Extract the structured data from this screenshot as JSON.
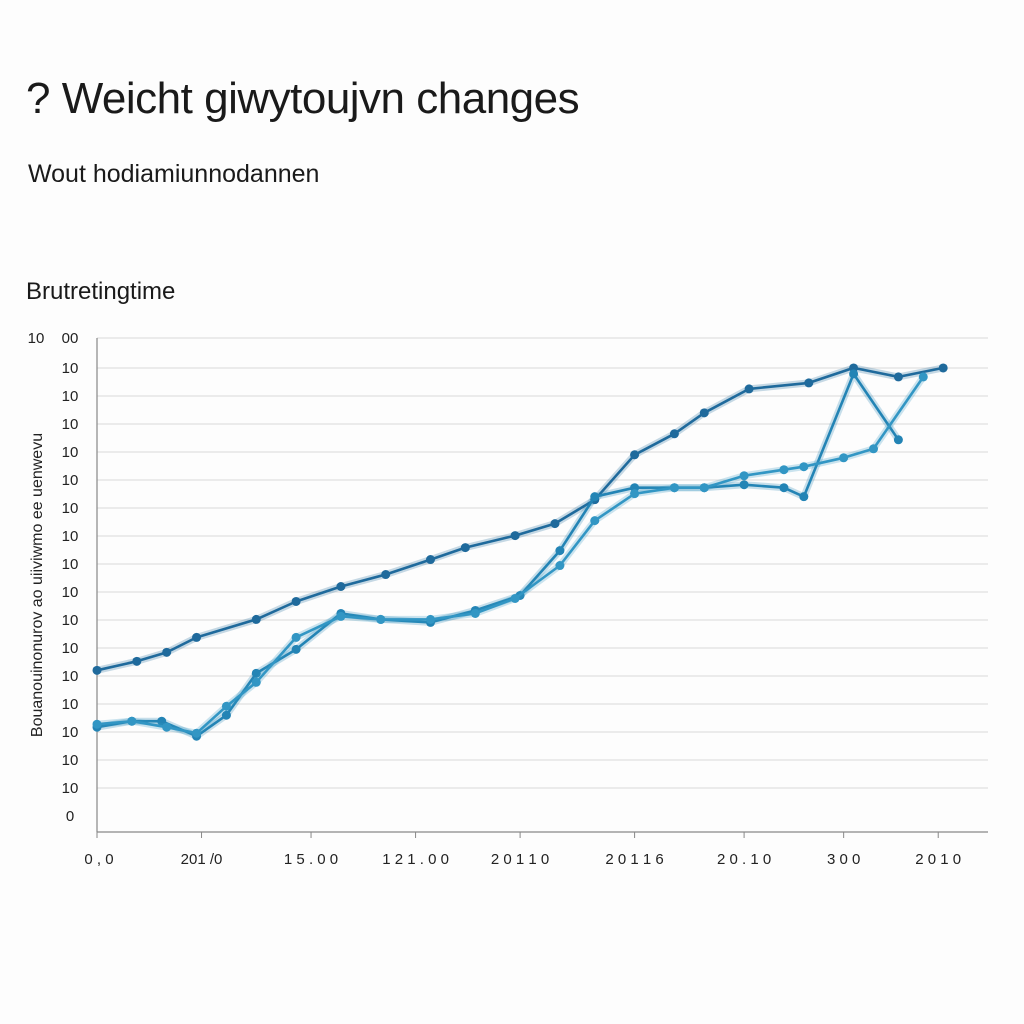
{
  "header": {
    "title": "? Weicht giwytoujvn changes",
    "subtitle": "Wout hodiamiunnodannen",
    "section_label": "Brutretingtime"
  },
  "colors": {
    "series_dark": "#1f6a9c",
    "series_mid": "#2384b5",
    "series_light": "#3296c4",
    "grid": "#d9d9d9",
    "axis": "#888888"
  },
  "chart_data": {
    "type": "line",
    "title": "? Weicht giwytoujvn changes",
    "subtitle": "Wout hodiamiunnodannen",
    "ylabel": "Bouanouinonurov ao uiiviwmo ee uenwevu",
    "y_tick_labels": [
      "10",
      "10",
      "10",
      "10",
      "10",
      "10",
      "10",
      "10",
      "10",
      "10",
      "10",
      "10",
      "10",
      "10",
      "10",
      "10",
      "0"
    ],
    "y_tick_top": "00",
    "x_tick_labels": [
      "0 , 0",
      "201 /0",
      "1 5 . 0 0",
      "1 2 1 . 0 0",
      "2 0 1 1 0",
      "2 0 1 1 6",
      "2 0 . 1 0",
      "3 0 0",
      "2 0 1 0"
    ],
    "x_tick_positions": [
      0,
      1.05,
      2.15,
      3.2,
      4.25,
      5.4,
      6.5,
      7.5,
      8.45
    ],
    "xlim": [
      0,
      8.95
    ],
    "ylim": [
      0,
      16.5
    ],
    "grid": true,
    "series": [
      {
        "x": [
          0,
          0.4,
          0.7,
          1.0,
          1.6,
          2.0,
          2.45,
          2.9,
          3.35,
          3.7,
          4.2,
          4.6,
          5.0,
          5.4,
          5.8,
          6.1,
          6.55,
          7.15,
          7.6,
          8.05,
          8.5
        ],
        "y": [
          5.4,
          5.7,
          6.0,
          6.5,
          7.1,
          7.7,
          8.2,
          8.6,
          9.1,
          9.5,
          9.9,
          10.3,
          11.1,
          12.6,
          13.3,
          14.0,
          14.8,
          15.0,
          15.5,
          15.2,
          15.5
        ]
      },
      {
        "x": [
          0,
          0.35,
          0.65,
          1.0,
          1.3,
          1.6,
          2.0,
          2.45,
          2.85,
          3.35,
          3.8,
          4.25,
          4.65,
          5.0,
          5.4,
          5.8,
          6.1,
          6.5,
          6.9,
          7.1,
          7.6,
          8.05
        ],
        "y": [
          3.5,
          3.7,
          3.7,
          3.2,
          3.9,
          5.3,
          6.1,
          7.3,
          7.1,
          7.0,
          7.4,
          7.9,
          9.4,
          11.2,
          11.5,
          11.5,
          11.5,
          11.6,
          11.5,
          11.2,
          15.3,
          13.1
        ]
      },
      {
        "x": [
          0,
          0.35,
          0.7,
          1.0,
          1.3,
          1.6,
          2.0,
          2.45,
          2.85,
          3.35,
          3.8,
          4.2,
          4.65,
          5.0,
          5.4,
          5.8,
          6.1,
          6.5,
          6.9,
          7.1,
          7.5,
          7.8,
          8.3
        ],
        "y": [
          3.6,
          3.7,
          3.5,
          3.3,
          4.2,
          5.0,
          6.5,
          7.2,
          7.1,
          7.1,
          7.3,
          7.8,
          8.9,
          10.4,
          11.3,
          11.5,
          11.5,
          11.9,
          12.1,
          12.2,
          12.5,
          12.8,
          15.2
        ]
      }
    ]
  }
}
